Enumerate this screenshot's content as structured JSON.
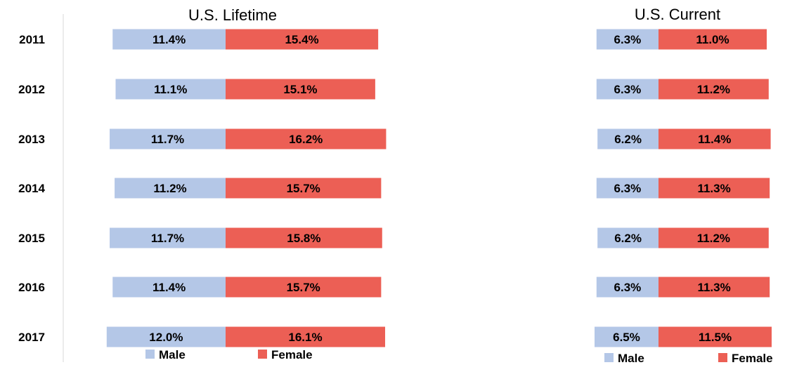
{
  "colors": {
    "male": "#b4c7e7",
    "female": "#ec5f55",
    "axis": "#d9d9d9",
    "text": "#000000"
  },
  "chart_data": [
    {
      "type": "bar",
      "orientation": "horizontal",
      "stacked": "diverging",
      "title": "U.S. Lifetime",
      "categories": [
        "2011",
        "2012",
        "2013",
        "2014",
        "2015",
        "2016",
        "2017"
      ],
      "series": [
        {
          "name": "Male",
          "values": [
            11.4,
            11.1,
            11.7,
            11.2,
            11.7,
            11.4,
            12.0
          ],
          "labels": [
            "11.4%",
            "11.1%",
            "11.7%",
            "11.2%",
            "11.7%",
            "11.4%",
            "12.0%"
          ]
        },
        {
          "name": "Female",
          "values": [
            15.4,
            15.1,
            16.2,
            15.7,
            15.8,
            15.7,
            16.1
          ],
          "labels": [
            "15.4%",
            "15.1%",
            "16.2%",
            "15.7%",
            "15.8%",
            "15.7%",
            "16.1%"
          ]
        }
      ],
      "grid": false,
      "legend": "bottom"
    },
    {
      "type": "bar",
      "orientation": "horizontal",
      "stacked": "diverging",
      "title": "U.S. Current",
      "categories": [
        "2011",
        "2012",
        "2013",
        "2014",
        "2015",
        "2016",
        "2017"
      ],
      "series": [
        {
          "name": "Male",
          "values": [
            6.3,
            6.3,
            6.2,
            6.3,
            6.2,
            6.3,
            6.5
          ],
          "labels": [
            "6.3%",
            "6.3%",
            "6.2%",
            "6.3%",
            "6.2%",
            "6.3%",
            "6.5%"
          ]
        },
        {
          "name": "Female",
          "values": [
            11.0,
            11.2,
            11.4,
            11.3,
            11.2,
            11.3,
            11.5
          ],
          "labels": [
            "11.0%",
            "11.2%",
            "11.4%",
            "11.3%",
            "11.2%",
            "11.3%",
            "11.5%"
          ]
        }
      ],
      "grid": false,
      "legend": "bottom"
    }
  ]
}
